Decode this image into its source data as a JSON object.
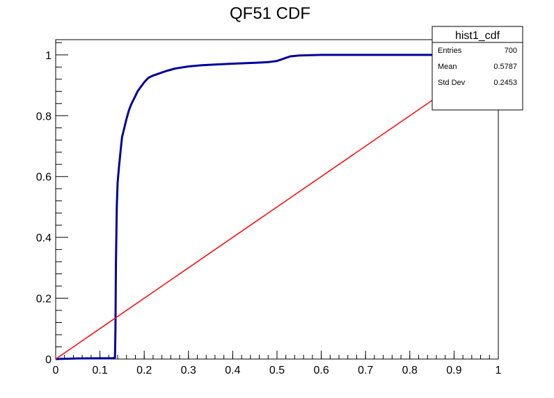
{
  "chart_data": {
    "type": "line",
    "title": "QF51 CDF",
    "xlabel": "",
    "ylabel": "",
    "xlim": [
      0,
      1
    ],
    "ylim": [
      0,
      1.05
    ],
    "x_ticks": [
      0,
      0.1,
      0.2,
      0.3,
      0.4,
      0.5,
      0.6,
      0.7,
      0.8,
      0.9,
      1
    ],
    "x_tick_labels": [
      "0",
      "0.1",
      "0.2",
      "0.3",
      "0.4",
      "0.5",
      "0.6",
      "0.7",
      "0.8",
      "0.9",
      "1"
    ],
    "y_ticks": [
      0,
      0.2,
      0.4,
      0.6,
      0.8,
      1
    ],
    "y_tick_labels": [
      "0",
      "0.2",
      "0.4",
      "0.6",
      "0.8",
      "1"
    ],
    "grid": false,
    "series": [
      {
        "color": "#000099",
        "x": [
          0.0,
          0.05,
          0.13,
          0.134,
          0.135,
          0.136,
          0.138,
          0.14,
          0.143,
          0.147,
          0.15,
          0.155,
          0.16,
          0.165,
          0.17,
          0.175,
          0.18,
          0.185,
          0.19,
          0.195,
          0.2,
          0.205,
          0.21,
          0.22,
          0.23,
          0.24,
          0.25,
          0.27,
          0.3,
          0.33,
          0.36,
          0.4,
          0.45,
          0.48,
          0.5,
          0.51,
          0.52,
          0.53,
          0.55,
          0.6,
          0.7,
          0.8,
          0.9,
          0.95
        ],
        "y": [
          0.0,
          0.002,
          0.003,
          0.005,
          0.1,
          0.3,
          0.5,
          0.58,
          0.63,
          0.69,
          0.73,
          0.76,
          0.79,
          0.815,
          0.835,
          0.85,
          0.865,
          0.88,
          0.89,
          0.9,
          0.91,
          0.918,
          0.925,
          0.932,
          0.937,
          0.942,
          0.947,
          0.955,
          0.962,
          0.966,
          0.968,
          0.971,
          0.974,
          0.976,
          0.98,
          0.985,
          0.99,
          0.995,
          0.998,
          1.0,
          1.0,
          1.0,
          1.0,
          1.0
        ]
      },
      {
        "color": "#ff0000",
        "x": [
          0,
          1
        ],
        "y": [
          0,
          1
        ]
      }
    ],
    "stats_box": {
      "title": "hist1_cdf",
      "rows": [
        {
          "label": "Entries",
          "value": "700"
        },
        {
          "label": "Mean",
          "value": "0.5787"
        },
        {
          "label": "Std Dev",
          "value": "0.2453"
        }
      ]
    }
  }
}
